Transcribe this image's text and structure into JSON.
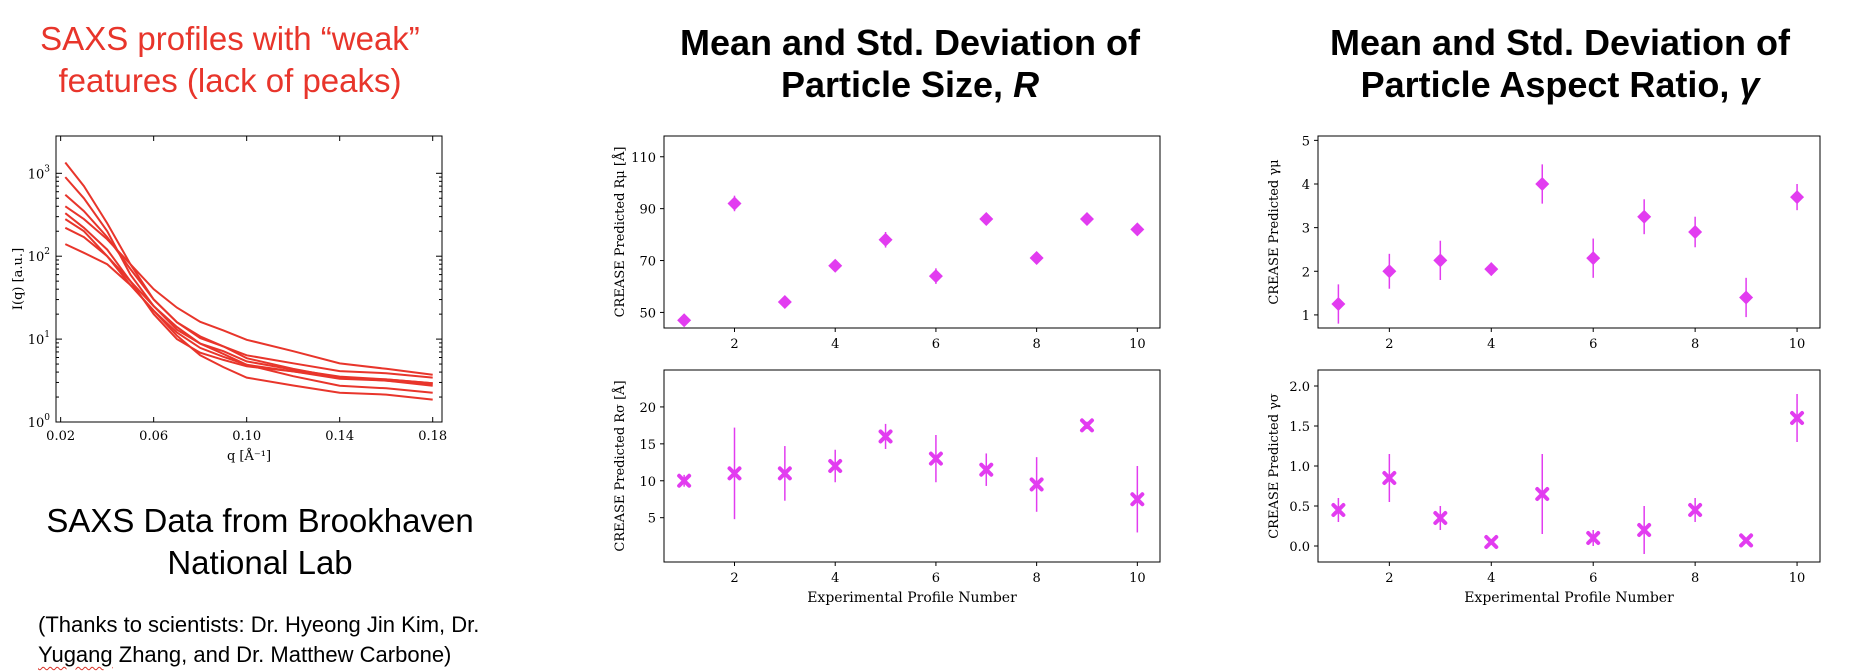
{
  "left": {
    "title_line1": "SAXS profiles with “weak”",
    "title_line2": "features (lack of peaks)",
    "source_line1": "SAXS Data from Brookhaven",
    "source_line2": "National Lab",
    "thanks_part1": "(Thanks to scientists: Dr. Hyeong Jin Kim,  Dr.",
    "thanks_squiggle": "Yugang",
    "thanks_part2": " Zhang, and Dr. Matthew Carbone)"
  },
  "headers": {
    "size_line1": "Mean and Std. Deviation of",
    "size_line2": "Particle Size, ",
    "size_symbol": "R",
    "aspect_line1": "Mean and Std. Deviation of",
    "aspect_line2": "Particle Aspect Ratio, ",
    "aspect_symbol": "γ"
  },
  "colors": {
    "red": "#e8352b",
    "magenta": "#e23cf0"
  },
  "chart_data": [
    {
      "id": "saxs",
      "type": "line",
      "xlabel": "q [Å⁻¹]",
      "ylabel": "I(q) [a.u.]",
      "xlim": [
        0.018,
        0.184
      ],
      "ylim_log10": [
        0,
        3.45
      ],
      "yscale": "log",
      "xticks": [
        0.02,
        0.06,
        0.1,
        0.14,
        0.18
      ],
      "xtick_labels": [
        "0.02",
        "0.06",
        "0.10",
        "0.14",
        "0.18"
      ],
      "ytick_exponents": [
        0,
        1,
        2,
        3
      ],
      "q": [
        0.022,
        0.03,
        0.04,
        0.05,
        0.06,
        0.07,
        0.08,
        0.09,
        0.1,
        0.12,
        0.14,
        0.16,
        0.18
      ],
      "series": [
        {
          "values": [
            1350,
            700,
            250,
            80,
            30,
            16,
            10.5,
            8,
            6.5,
            5.0,
            4.2,
            3.8,
            3.5
          ]
        },
        {
          "values": [
            900,
            500,
            200,
            60,
            25,
            13,
            9,
            7,
            5.5,
            4.2,
            3.6,
            3.2,
            3.0
          ]
        },
        {
          "values": [
            550,
            350,
            170,
            70,
            30,
            16,
            11,
            8,
            6,
            4.3,
            3.5,
            3.1,
            2.9
          ]
        },
        {
          "values": [
            400,
            280,
            160,
            80,
            40,
            24,
            16.5,
            12.5,
            10,
            7,
            5.2,
            4.3,
            3.8
          ]
        },
        {
          "values": [
            330,
            220,
            120,
            50,
            20,
            10,
            7,
            5.5,
            4.8,
            4.0,
            3.5,
            3.2,
            3.0
          ]
        },
        {
          "values": [
            280,
            200,
            100,
            45,
            22,
            12,
            8,
            6,
            5,
            4.0,
            3.4,
            3.1,
            2.8
          ]
        },
        {
          "values": [
            220,
            170,
            100,
            50,
            25,
            14,
            9,
            6.5,
            5,
            3.5,
            2.8,
            2.5,
            2.3
          ]
        },
        {
          "values": [
            140,
            110,
            80,
            45,
            22,
            11,
            6.5,
            4.5,
            3.5,
            2.7,
            2.3,
            2.1,
            1.9
          ]
        }
      ]
    },
    {
      "id": "r_mu",
      "type": "scatter",
      "ylabel": "CREASE Predicted Rμ [Å]",
      "xlim": [
        0.6,
        10.45
      ],
      "ylim": [
        44,
        118
      ],
      "xticks": [
        2,
        4,
        6,
        8,
        10
      ],
      "yticks": [
        50,
        70,
        90,
        110
      ],
      "marker": "diamond",
      "x": [
        1,
        2,
        3,
        4,
        5,
        6,
        7,
        8,
        9,
        10
      ],
      "y": [
        47,
        92,
        54,
        68,
        78,
        64,
        86,
        71,
        86,
        82
      ],
      "err": [
        1.5,
        3,
        1.5,
        1.5,
        3,
        3,
        1.5,
        1.5,
        1.5,
        1.5
      ]
    },
    {
      "id": "r_sigma",
      "type": "scatter",
      "ylabel": "CREASE Predicted Rσ [Å]",
      "xlabel": "Experimental Profile Number",
      "xlim": [
        0.6,
        10.45
      ],
      "ylim": [
        -1,
        25
      ],
      "xticks": [
        2,
        4,
        6,
        8,
        10
      ],
      "yticks": [
        5,
        10,
        15,
        20
      ],
      "marker": "x",
      "x": [
        1,
        2,
        3,
        4,
        5,
        6,
        7,
        8,
        9,
        10
      ],
      "y": [
        10,
        11,
        11,
        12,
        16,
        13,
        11.5,
        9.5,
        17.5,
        7.5
      ],
      "err": [
        0.8,
        6.2,
        3.7,
        2.2,
        1.7,
        3.2,
        2.2,
        3.7,
        0.5,
        4.5
      ]
    },
    {
      "id": "g_mu",
      "type": "scatter",
      "ylabel": "CREASE Predicted γμ",
      "xlim": [
        0.6,
        10.45
      ],
      "ylim": [
        0.7,
        5.1
      ],
      "xticks": [
        2,
        4,
        6,
        8,
        10
      ],
      "yticks": [
        1,
        2,
        3,
        4,
        5
      ],
      "marker": "diamond",
      "x": [
        1,
        2,
        3,
        4,
        5,
        6,
        7,
        8,
        9,
        10
      ],
      "y": [
        1.25,
        2.0,
        2.25,
        2.05,
        4.0,
        2.3,
        3.25,
        2.9,
        1.4,
        3.7
      ],
      "err": [
        0.45,
        0.4,
        0.45,
        0.15,
        0.45,
        0.45,
        0.4,
        0.35,
        0.45,
        0.3
      ]
    },
    {
      "id": "g_sigma",
      "type": "scatter",
      "ylabel": "CREASE Predicted γσ",
      "xlabel": "Experimental Profile Number",
      "xlim": [
        0.6,
        10.45
      ],
      "ylim": [
        -0.2,
        2.2
      ],
      "xticks": [
        2,
        4,
        6,
        8,
        10
      ],
      "yticks": [
        0.0,
        0.5,
        1.0,
        1.5,
        2.0
      ],
      "ytick_labels": [
        "0.0",
        "0.5",
        "1.0",
        "1.5",
        "2.0"
      ],
      "marker": "x",
      "x": [
        1,
        2,
        3,
        4,
        5,
        6,
        7,
        8,
        9,
        10
      ],
      "y": [
        0.45,
        0.85,
        0.35,
        0.05,
        0.65,
        0.1,
        0.2,
        0.45,
        0.07,
        1.6
      ],
      "err": [
        0.15,
        0.3,
        0.15,
        0.03,
        0.5,
        0.1,
        0.3,
        0.15,
        0.03,
        0.3
      ]
    }
  ]
}
